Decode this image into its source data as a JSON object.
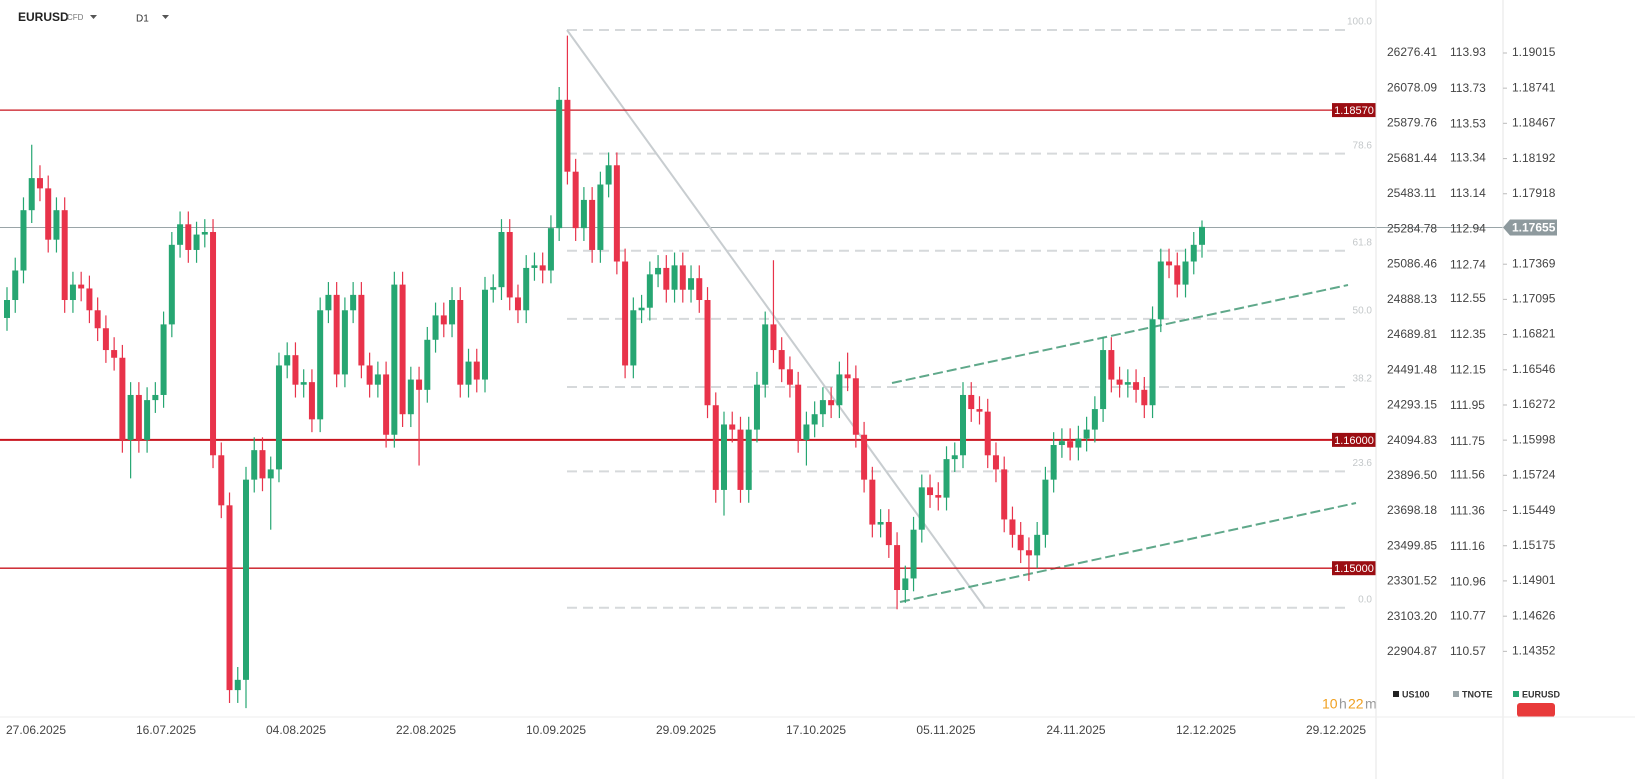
{
  "chart_data": {
    "type": "candlestick",
    "symbol": "EURUSD",
    "instrument": "CFD",
    "interval": "D1",
    "ylim": [
      1.13856,
      1.1935
    ],
    "yticks": [
      1.19015,
      1.18741,
      1.18467,
      1.18192,
      1.17918,
      1.17369,
      1.17095,
      1.16821,
      1.16546,
      1.16272,
      1.15998,
      1.15724,
      1.15449,
      1.15175,
      1.14901,
      1.14626,
      1.14352
    ],
    "us100_ylim": [
      22550.3,
      26518.4
    ],
    "us100_ticks": [
      26276.41,
      26078.09,
      25879.76,
      25681.44,
      25483.11,
      25284.78,
      25086.46,
      24888.13,
      24689.81,
      24491.48,
      24293.15,
      24094.83,
      {
        "value": 23896.5,
        "label": "23896.50"
      },
      23698.18,
      23499.85,
      23301.52,
      {
        "value": 23103.2,
        "label": "23103.20"
      },
      22904.87
    ],
    "tnote_ylim": [
      110.217,
      114.171
    ],
    "tnote_ticks": [
      113.93,
      113.73,
      113.53,
      113.34,
      113.14,
      112.94,
      112.74,
      112.55,
      112.35,
      112.15,
      111.95,
      111.75,
      111.56,
      111.36,
      111.16,
      110.96,
      110.77,
      110.57
    ],
    "x_labels": [
      "27.06.2025",
      "16.07.2025",
      "04.08.2025",
      "22.08.2025",
      "10.09.2025",
      "29.09.2025",
      "17.10.2025",
      "05.11.2025",
      "24.11.2025",
      "12.12.2025",
      "29.12.2025"
    ],
    "up_color": "#26a672",
    "down_color": "#e8334a",
    "levels": [
      {
        "value": 1.1857,
        "label": "1.18570"
      },
      {
        "value": 1.16,
        "label": "1.16000"
      },
      {
        "value": 1.15,
        "label": "1.15000"
      }
    ],
    "last_price": {
      "value": 1.17655,
      "label": "1.17655"
    },
    "fib": {
      "low": 1.14692,
      "high": 1.19194,
      "levels": [
        {
          "value": 100,
          "label": "100.0"
        },
        78.6,
        61.8,
        {
          "value": 50,
          "label": "50.0"
        },
        38.2,
        23.6,
        {
          "value": 0,
          "label": "0.0"
        }
      ]
    },
    "legend": [
      {
        "name": "US100",
        "color": "#222222"
      },
      {
        "name": "TNOTE",
        "color": "#9aa5a8"
      },
      {
        "name": "EURUSD",
        "color": "#26a672"
      }
    ],
    "timer": {
      "hours": "10",
      "h": "h",
      "minutes": "22",
      "m": "m"
    },
    "candles": [
      [
        1.1695,
        1.1719,
        1.1685,
        1.1709
      ],
      [
        1.1709,
        1.1742,
        1.1699,
        1.1732
      ],
      [
        1.1732,
        1.1789,
        1.1722,
        1.1779
      ],
      [
        1.1779,
        1.183,
        1.1769,
        1.1804
      ],
      [
        1.1804,
        1.1814,
        1.1786,
        1.1796
      ],
      [
        1.1796,
        1.1806,
        1.1746,
        1.1756
      ],
      [
        1.1756,
        1.1789,
        1.1746,
        1.1779
      ],
      [
        1.1779,
        1.1789,
        1.1699,
        1.1709
      ],
      [
        1.1709,
        1.1731,
        1.1699,
        1.1721
      ],
      [
        1.1721,
        1.1731,
        1.1708,
        1.1718
      ],
      [
        1.1718,
        1.1728,
        1.1691,
        1.1701
      ],
      [
        1.1701,
        1.1711,
        1.1677,
        1.1687
      ],
      [
        1.1687,
        1.1697,
        1.166,
        1.167
      ],
      [
        1.167,
        1.168,
        1.1654,
        1.1664
      ],
      [
        1.1664,
        1.1674,
        1.159,
        1.16
      ],
      [
        1.16,
        1.1645,
        1.157,
        1.1635
      ],
      [
        1.1635,
        1.1645,
        1.159,
        1.16
      ],
      [
        1.16,
        1.1641,
        1.159,
        1.1631
      ],
      [
        1.1631,
        1.1645,
        1.1621,
        1.1635
      ],
      [
        1.1635,
        1.17,
        1.1625,
        1.169
      ],
      [
        1.169,
        1.1762,
        1.168,
        1.1752
      ],
      [
        1.1752,
        1.1778,
        1.1742,
        1.1768
      ],
      [
        1.1768,
        1.1778,
        1.1738,
        1.1748
      ],
      [
        1.1748,
        1.177,
        1.1738,
        1.176
      ],
      [
        1.176,
        1.1772,
        1.175,
        1.1762
      ],
      [
        1.1762,
        1.1772,
        1.1578,
        1.1588
      ],
      [
        1.1588,
        1.1598,
        1.1539,
        1.1549
      ],
      [
        1.1549,
        1.1559,
        1.1395,
        1.1405
      ],
      [
        1.1405,
        1.1423,
        1.1395,
        1.1413
      ],
      [
        1.1413,
        1.1579,
        1.1391,
        1.1569
      ],
      [
        1.1569,
        1.1602,
        1.1559,
        1.1592
      ],
      [
        1.1592,
        1.1602,
        1.156,
        1.157
      ],
      [
        1.157,
        1.1587,
        1.153,
        1.1577
      ],
      [
        1.1577,
        1.1668,
        1.1567,
        1.1658
      ],
      [
        1.1658,
        1.1676,
        1.1648,
        1.1666
      ],
      [
        1.1666,
        1.1676,
        1.1633,
        1.1643
      ],
      [
        1.1643,
        1.1655,
        1.1633,
        1.1645
      ],
      [
        1.1645,
        1.1655,
        1.1606,
        1.1616
      ],
      [
        1.1616,
        1.1711,
        1.1606,
        1.1701
      ],
      [
        1.1701,
        1.1723,
        1.1691,
        1.1713
      ],
      [
        1.1713,
        1.1723,
        1.1641,
        1.1651
      ],
      [
        1.1651,
        1.1711,
        1.1641,
        1.1701
      ],
      [
        1.1701,
        1.1723,
        1.1691,
        1.1713
      ],
      [
        1.1713,
        1.1723,
        1.1648,
        1.1658
      ],
      [
        1.1658,
        1.1668,
        1.1633,
        1.1643
      ],
      [
        1.1643,
        1.1661,
        1.1633,
        1.1651
      ],
      [
        1.1651,
        1.1661,
        1.1594,
        1.1604
      ],
      [
        1.1604,
        1.1731,
        1.1594,
        1.1721
      ],
      [
        1.1721,
        1.1731,
        1.161,
        1.162
      ],
      [
        1.162,
        1.1657,
        1.161,
        1.1647
      ],
      [
        1.1647,
        1.1657,
        1.158,
        1.1639
      ],
      [
        1.1639,
        1.1688,
        1.1629,
        1.1678
      ],
      [
        1.1678,
        1.1707,
        1.1668,
        1.1697
      ],
      [
        1.1697,
        1.1707,
        1.168,
        1.169
      ],
      [
        1.169,
        1.1719,
        1.168,
        1.1709
      ],
      [
        1.1709,
        1.1719,
        1.1633,
        1.1643
      ],
      [
        1.1643,
        1.1671,
        1.1633,
        1.1661
      ],
      [
        1.1661,
        1.1671,
        1.1637,
        1.1647
      ],
      [
        1.1647,
        1.1727,
        1.1637,
        1.1717
      ],
      [
        1.1717,
        1.1729,
        1.1707,
        1.1719
      ],
      [
        1.1719,
        1.1772,
        1.1709,
        1.1762
      ],
      [
        1.1762,
        1.1772,
        1.1701,
        1.1711
      ],
      [
        1.1711,
        1.1721,
        1.1691,
        1.1701
      ],
      [
        1.1701,
        1.1744,
        1.1691,
        1.1734
      ],
      [
        1.1734,
        1.1746,
        1.1724,
        1.1736
      ],
      [
        1.1736,
        1.1746,
        1.1722,
        1.1732
      ],
      [
        1.1732,
        1.1775,
        1.1722,
        1.1765
      ],
      [
        1.1765,
        1.1875,
        1.1755,
        1.1865
      ],
      [
        1.1865,
        1.1915,
        1.1799,
        1.1809
      ],
      [
        1.1809,
        1.1819,
        1.1755,
        1.1765
      ],
      [
        1.1765,
        1.1797,
        1.1755,
        1.1787
      ],
      [
        1.1787,
        1.1797,
        1.1738,
        1.1748
      ],
      [
        1.1748,
        1.1809,
        1.1738,
        1.1799
      ],
      [
        1.1799,
        1.1824,
        1.1789,
        1.1814
      ],
      [
        1.1814,
        1.1824,
        1.1729,
        1.1739
      ],
      [
        1.1739,
        1.1749,
        1.1648,
        1.1658
      ],
      [
        1.1658,
        1.1711,
        1.1648,
        1.1701
      ],
      [
        1.1701,
        1.1713,
        1.1691,
        1.1703
      ],
      [
        1.1703,
        1.1739,
        1.1693,
        1.1729
      ],
      [
        1.1729,
        1.1744,
        1.1719,
        1.1734
      ],
      [
        1.1734,
        1.1744,
        1.1707,
        1.1717
      ],
      [
        1.1717,
        1.1746,
        1.1707,
        1.1736
      ],
      [
        1.1736,
        1.1746,
        1.1707,
        1.1717
      ],
      [
        1.1717,
        1.1736,
        1.1707,
        1.1726
      ],
      [
        1.1726,
        1.1736,
        1.1699,
        1.1709
      ],
      [
        1.1709,
        1.1719,
        1.1617,
        1.1627
      ],
      [
        1.1627,
        1.1637,
        1.1551,
        1.1561
      ],
      [
        1.1561,
        1.1622,
        1.1541,
        1.1612
      ],
      [
        1.1612,
        1.1622,
        1.1598,
        1.1608
      ],
      [
        1.1608,
        1.1618,
        1.1551,
        1.1561
      ],
      [
        1.1561,
        1.1618,
        1.1551,
        1.1608
      ],
      [
        1.1608,
        1.1653,
        1.1598,
        1.1643
      ],
      [
        1.1643,
        1.17,
        1.1633,
        1.169
      ],
      [
        1.169,
        1.174,
        1.166,
        1.167
      ],
      [
        1.167,
        1.168,
        1.1645,
        1.1655
      ],
      [
        1.1655,
        1.1665,
        1.1633,
        1.1643
      ],
      [
        1.1643,
        1.1653,
        1.159,
        1.16
      ],
      [
        1.16,
        1.1622,
        1.158,
        1.1612
      ],
      [
        1.1612,
        1.163,
        1.1602,
        1.162
      ],
      [
        1.162,
        1.1641,
        1.161,
        1.1631
      ],
      [
        1.1631,
        1.1641,
        1.1617,
        1.1627
      ],
      [
        1.1627,
        1.1661,
        1.1617,
        1.1651
      ],
      [
        1.1651,
        1.1668,
        1.1638,
        1.1648
      ],
      [
        1.1648,
        1.1658,
        1.1594,
        1.1604
      ],
      [
        1.1604,
        1.1614,
        1.1559,
        1.1569
      ],
      [
        1.1569,
        1.1579,
        1.1524,
        1.1534
      ],
      [
        1.1534,
        1.1546,
        1.1524,
        1.1536
      ],
      [
        1.1536,
        1.1546,
        1.1508,
        1.1518
      ],
      [
        1.1518,
        1.1528,
        1.1468,
        1.1483
      ],
      [
        1.1483,
        1.1502,
        1.1473,
        1.1492
      ],
      [
        1.1492,
        1.154,
        1.1482,
        1.153
      ],
      [
        1.153,
        1.1573,
        1.152,
        1.1563
      ],
      [
        1.1563,
        1.1573,
        1.1547,
        1.1557
      ],
      [
        1.1557,
        1.1567,
        1.1545,
        1.1555
      ],
      [
        1.1555,
        1.1595,
        1.1545,
        1.1585
      ],
      [
        1.1585,
        1.1598,
        1.1575,
        1.1588
      ],
      [
        1.1588,
        1.1645,
        1.1578,
        1.1635
      ],
      [
        1.1635,
        1.1645,
        1.1614,
        1.1624
      ],
      [
        1.1624,
        1.1634,
        1.1612,
        1.1622
      ],
      [
        1.1622,
        1.1632,
        1.1578,
        1.1588
      ],
      [
        1.1588,
        1.1598,
        1.1567,
        1.1577
      ],
      [
        1.1577,
        1.1587,
        1.1528,
        1.1538
      ],
      [
        1.1538,
        1.1548,
        1.1516,
        1.1526
      ],
      [
        1.1526,
        1.1536,
        1.1504,
        1.1514
      ],
      [
        1.1514,
        1.1524,
        1.149,
        1.151
      ],
      [
        1.151,
        1.1536,
        1.15,
        1.1526
      ],
      [
        1.1526,
        1.1579,
        1.1516,
        1.1569
      ],
      [
        1.1569,
        1.1606,
        1.1559,
        1.1596
      ],
      [
        1.1596,
        1.1609,
        1.1586,
        1.1599
      ],
      [
        1.1599,
        1.1609,
        1.1584,
        1.1594
      ],
      [
        1.1594,
        1.1611,
        1.1584,
        1.1601
      ],
      [
        1.1601,
        1.1618,
        1.1591,
        1.1608
      ],
      [
        1.1608,
        1.1634,
        1.1598,
        1.1624
      ],
      [
        1.1624,
        1.168,
        1.1614,
        1.167
      ],
      [
        1.167,
        1.168,
        1.1637,
        1.1647
      ],
      [
        1.1647,
        1.1657,
        1.1633,
        1.1643
      ],
      [
        1.1643,
        1.1655,
        1.1633,
        1.1645
      ],
      [
        1.1645,
        1.1655,
        1.1629,
        1.1639
      ],
      [
        1.1639,
        1.1649,
        1.1617,
        1.1627
      ],
      [
        1.1627,
        1.1704,
        1.1617,
        1.1694
      ],
      [
        1.1694,
        1.1749,
        1.1684,
        1.1739
      ],
      [
        1.1739,
        1.1749,
        1.1726,
        1.1736
      ],
      [
        1.1736,
        1.1746,
        1.1711,
        1.1721
      ],
      [
        1.1721,
        1.1749,
        1.1711,
        1.1739
      ],
      [
        1.1739,
        1.1762,
        1.1729,
        1.1752
      ],
      [
        1.1752,
        1.1771,
        1.1742,
        1.1766
      ]
    ]
  }
}
